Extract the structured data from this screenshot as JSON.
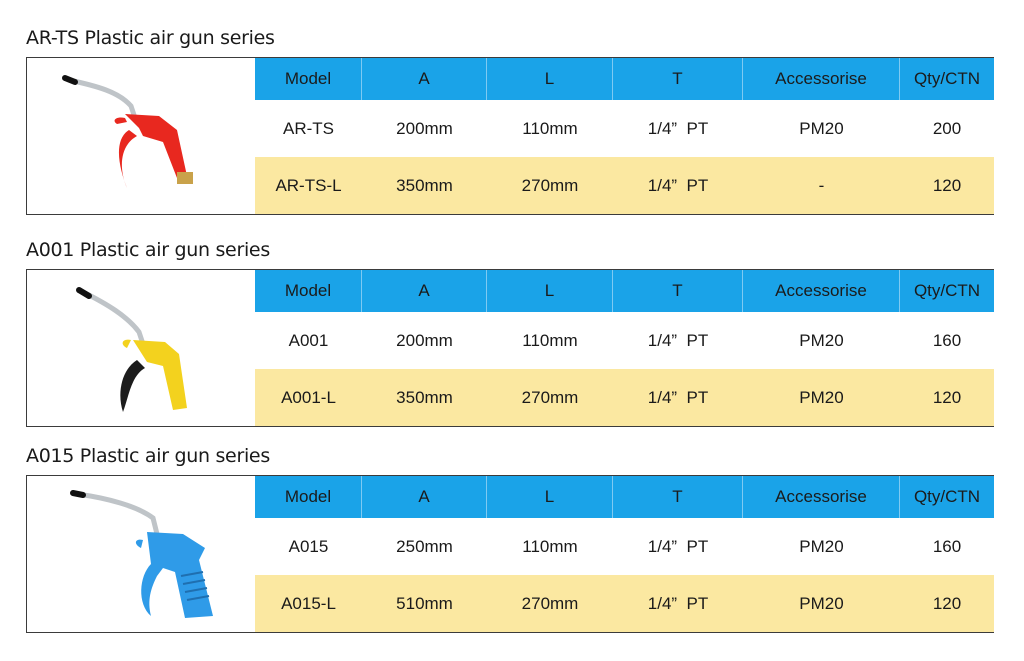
{
  "colors": {
    "header_bg": "#1aa3e8",
    "alt_row_bg": "#fbe8a1",
    "border": "#3b3b3b"
  },
  "headers": [
    "Model",
    "A",
    "L",
    "T",
    "Accessorise",
    "Qty/CTN"
  ],
  "sections": [
    {
      "title": "AR-TS Plastic air gun series",
      "product_color": "#e8281f",
      "rows": [
        [
          "AR-TS",
          "200mm",
          "110mm",
          "1/4”  PT",
          "PM20",
          "200"
        ],
        [
          "AR-TS-L",
          "350mm",
          "270mm",
          "1/4”  PT",
          "-",
          "120"
        ]
      ]
    },
    {
      "title": "A001 Plastic air gun series",
      "product_color": "#f3d21e",
      "rows": [
        [
          "A001",
          "200mm",
          "110mm",
          "1/4”  PT",
          "PM20",
          "160"
        ],
        [
          "A001-L",
          "350mm",
          "270mm",
          "1/4”  PT",
          "PM20",
          "120"
        ]
      ]
    },
    {
      "title": "A015 Plastic air gun series",
      "product_color": "#2f9be8",
      "rows": [
        [
          "A015",
          "250mm",
          "110mm",
          "1/4”  PT",
          "PM20",
          "160"
        ],
        [
          "A015-L",
          "510mm",
          "270mm",
          "1/4”  PT",
          "PM20",
          "120"
        ]
      ]
    }
  ]
}
